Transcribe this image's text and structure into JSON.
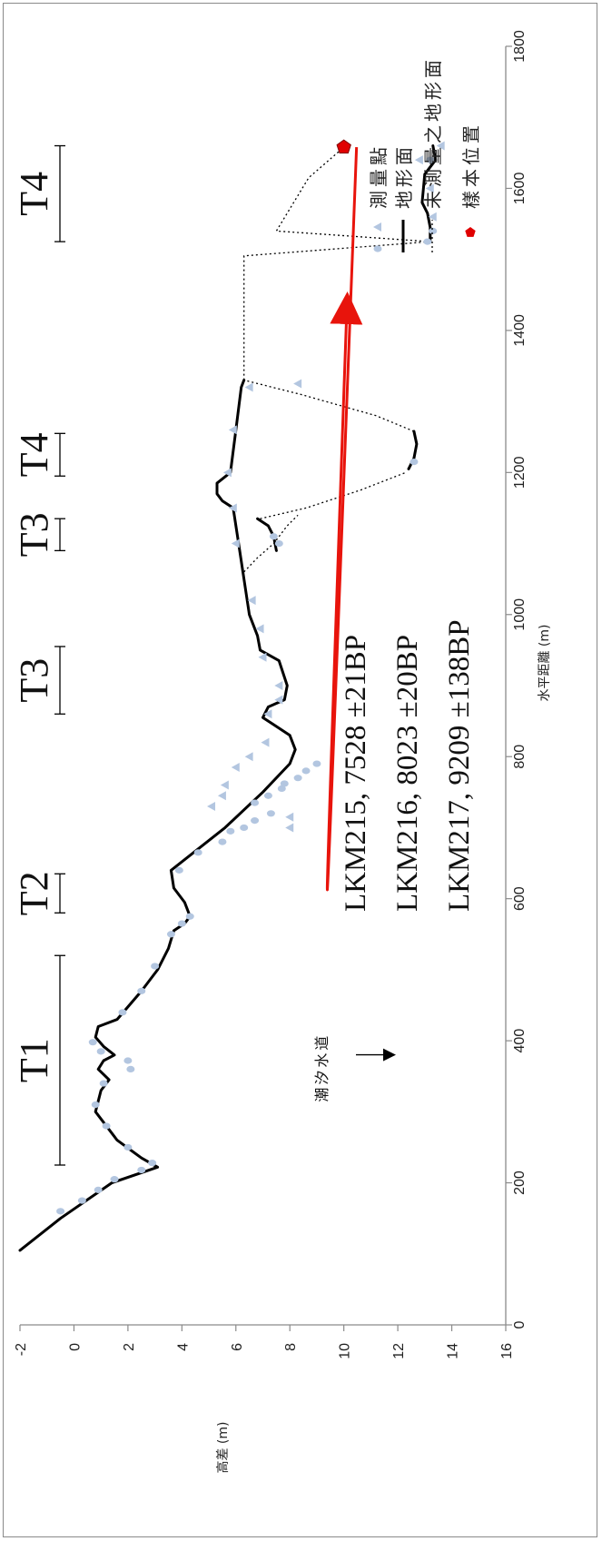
{
  "chart_data": {
    "type": "line",
    "orientation": "rotated-90-cw",
    "xlabel": "水平距離 (m)",
    "ylabel": "高差 (m)",
    "xlim": [
      0,
      1800
    ],
    "ylim": [
      -2,
      16
    ],
    "x_ticks": [
      "0",
      "200",
      "400",
      "600",
      "800",
      "1000",
      "1200",
      "1400",
      "1600",
      "1800"
    ],
    "y_ticks": [
      "-2",
      "0",
      "2",
      "4",
      "6",
      "8",
      "10",
      "12",
      "14",
      "16"
    ],
    "legend": {
      "position": "right",
      "entries": [
        {
          "label": "測量點",
          "marker": "circle-triangle",
          "color": "#b3c6e0"
        },
        {
          "label": "地形面",
          "marker": "solid-line",
          "color": "#000000"
        },
        {
          "label": "未測量之地形面",
          "marker": "dotted-line",
          "color": "#000000"
        },
        {
          "label": "樣本位置",
          "marker": "pentagon",
          "color": "#e00000"
        }
      ]
    },
    "terraces": [
      {
        "label": "T1",
        "x_range": [
          225,
          520
        ]
      },
      {
        "label": "T2",
        "x_range": [
          580,
          635
        ]
      },
      {
        "label": "T3",
        "x_range": [
          860,
          955
        ]
      },
      {
        "label": "T4",
        "x_range": [
          1195,
          1255
        ]
      },
      {
        "label": "T3",
        "x_range": [
          1090,
          1135
        ]
      },
      {
        "label": "T4",
        "x_range": [
          1525,
          1660
        ]
      }
    ],
    "annotations": [
      {
        "text": "潮汐水道",
        "x": 370,
        "y": 2.3
      }
    ],
    "ages": [
      "LKM215, 7528 ±21BP",
      "LKM216, 8023 ±20BP",
      "LKM217, 9209 ±138BP"
    ],
    "sample": {
      "x": 1658,
      "y": 10
    },
    "series": [
      {
        "name": "地形面",
        "style": "solid",
        "x": [
          105,
          150,
          200,
          222,
          235,
          260,
          300,
          330,
          345,
          360,
          372,
          380,
          392,
          405,
          420,
          430,
          470,
          500,
          530,
          555,
          565,
          575,
          595,
          615,
          640,
          700,
          750,
          790,
          810,
          830,
          845,
          855,
          870,
          880,
          900,
          935,
          950,
          970,
          1000,
          1050,
          1100,
          1150,
          1160,
          1170,
          1185,
          1200,
          1260,
          1320,
          1330
        ],
        "y": [
          -2.0,
          -0.5,
          1.4,
          3.1,
          2.5,
          1.6,
          0.8,
          1.0,
          1.3,
          0.9,
          1.1,
          1.5,
          1.1,
          0.8,
          0.9,
          1.6,
          2.5,
          3.1,
          3.5,
          3.7,
          4.1,
          4.3,
          4.1,
          3.7,
          3.6,
          5.6,
          7.0,
          8.0,
          8.2,
          8.0,
          7.4,
          7.0,
          7.2,
          7.8,
          7.9,
          7.6,
          6.9,
          6.8,
          6.5,
          6.3,
          6.1,
          5.9,
          5.5,
          5.3,
          5.3,
          5.8,
          6.0,
          6.2,
          6.3
        ]
      },
      {
        "name": "",
        "style": "solid",
        "x": [
          1090,
          1110,
          1125,
          1135
        ],
        "y": [
          7.5,
          7.4,
          7.2,
          6.8
        ]
      },
      {
        "name": "",
        "style": "solid",
        "x": [
          1205,
          1220,
          1240,
          1258
        ],
        "y": [
          12.4,
          12.6,
          12.7,
          12.6
        ]
      },
      {
        "name": "",
        "style": "solid",
        "x": [
          1525,
          1545,
          1565,
          1580,
          1620,
          1640,
          1660
        ],
        "y": [
          13.2,
          13.2,
          13.1,
          12.9,
          13.0,
          13.4,
          13.3
        ]
      },
      {
        "name": "",
        "style": "dotted",
        "x": [
          1060,
          1080,
          1100,
          1125,
          1140
        ],
        "y": [
          6.3,
          6.8,
          7.4,
          7.9,
          8.3
        ]
      },
      {
        "name": "",
        "style": "dotted",
        "x": [
          1135,
          1150,
          1175,
          1200
        ],
        "y": [
          6.9,
          8.6,
          10.6,
          12.3
        ]
      },
      {
        "name": "",
        "style": "dotted",
        "x": [
          1258,
          1280,
          1310,
          1330
        ],
        "y": [
          12.6,
          11.2,
          8.4,
          6.3
        ]
      },
      {
        "name": "",
        "style": "dotted",
        "x": [
          1330,
          1450,
          1505,
          1525
        ],
        "y": [
          6.3,
          6.3,
          6.3,
          13.2
        ]
      },
      {
        "name": "",
        "style": "dotted",
        "x": [
          1525,
          1540,
          1615,
          1658
        ],
        "y": [
          13.2,
          7.5,
          8.7,
          10.0
        ]
      }
    ],
    "points_circle": [
      {
        "x": 160,
        "y": -0.5
      },
      {
        "x": 175,
        "y": 0.3
      },
      {
        "x": 190,
        "y": 0.9
      },
      {
        "x": 205,
        "y": 1.5
      },
      {
        "x": 218,
        "y": 2.5
      },
      {
        "x": 228,
        "y": 2.9
      },
      {
        "x": 250,
        "y": 2.0
      },
      {
        "x": 280,
        "y": 1.2
      },
      {
        "x": 310,
        "y": 0.8
      },
      {
        "x": 340,
        "y": 1.1
      },
      {
        "x": 360,
        "y": 2.1
      },
      {
        "x": 372,
        "y": 2.0
      },
      {
        "x": 385,
        "y": 1.0
      },
      {
        "x": 398,
        "y": 0.7
      },
      {
        "x": 440,
        "y": 1.8
      },
      {
        "x": 470,
        "y": 2.5
      },
      {
        "x": 505,
        "y": 3.0
      },
      {
        "x": 550,
        "y": 3.6
      },
      {
        "x": 565,
        "y": 4.0
      },
      {
        "x": 575,
        "y": 4.3
      },
      {
        "x": 640,
        "y": 3.9
      },
      {
        "x": 665,
        "y": 4.6
      },
      {
        "x": 680,
        "y": 5.5
      },
      {
        "x": 695,
        "y": 5.8
      },
      {
        "x": 700,
        "y": 6.3
      },
      {
        "x": 710,
        "y": 6.7
      },
      {
        "x": 720,
        "y": 7.3
      },
      {
        "x": 735,
        "y": 6.7
      },
      {
        "x": 745,
        "y": 7.2
      },
      {
        "x": 755,
        "y": 7.7
      },
      {
        "x": 762,
        "y": 7.8
      },
      {
        "x": 770,
        "y": 8.3
      },
      {
        "x": 780,
        "y": 8.6
      },
      {
        "x": 790,
        "y": 9.0
      },
      {
        "x": 1100,
        "y": 7.6
      },
      {
        "x": 1110,
        "y": 7.4
      },
      {
        "x": 1215,
        "y": 12.6
      },
      {
        "x": 1525,
        "y": 13.1
      },
      {
        "x": 1540,
        "y": 13.3
      },
      {
        "x": 1640,
        "y": 13.2
      }
    ],
    "points_triangle": [
      {
        "x": 700,
        "y": 8.0
      },
      {
        "x": 715,
        "y": 8.0
      },
      {
        "x": 730,
        "y": 5.1
      },
      {
        "x": 745,
        "y": 5.5
      },
      {
        "x": 760,
        "y": 5.6
      },
      {
        "x": 785,
        "y": 6.0
      },
      {
        "x": 800,
        "y": 6.5
      },
      {
        "x": 820,
        "y": 7.1
      },
      {
        "x": 860,
        "y": 7.2
      },
      {
        "x": 880,
        "y": 7.6
      },
      {
        "x": 900,
        "y": 7.6
      },
      {
        "x": 940,
        "y": 7.0
      },
      {
        "x": 980,
        "y": 6.9
      },
      {
        "x": 1020,
        "y": 6.6
      },
      {
        "x": 1100,
        "y": 6.0
      },
      {
        "x": 1150,
        "y": 5.9
      },
      {
        "x": 1200,
        "y": 5.7
      },
      {
        "x": 1260,
        "y": 5.9
      },
      {
        "x": 1320,
        "y": 6.5
      },
      {
        "x": 1325,
        "y": 8.3
      },
      {
        "x": 1560,
        "y": 13.3
      },
      {
        "x": 1600,
        "y": 13.2
      },
      {
        "x": 1640,
        "y": 12.8
      },
      {
        "x": 1660,
        "y": 13.6
      }
    ]
  }
}
